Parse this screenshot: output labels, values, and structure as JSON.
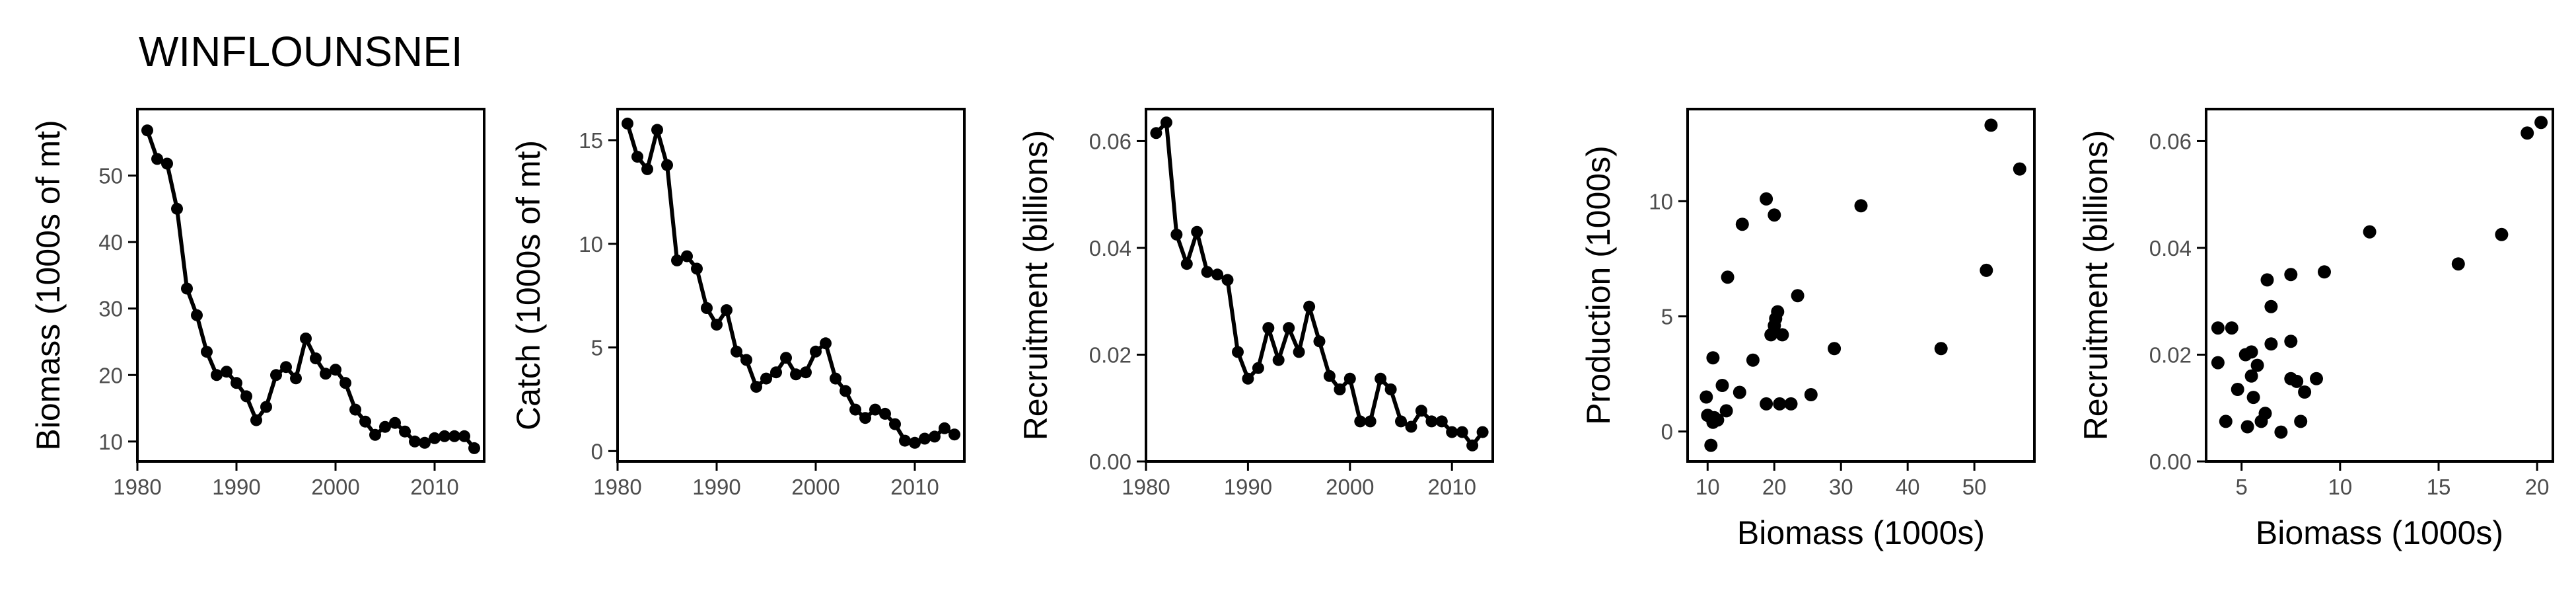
{
  "figure": {
    "title": "WINFLOUNSNEI"
  },
  "chart_data": [
    {
      "id": "biomass",
      "type": "line",
      "title": "",
      "xlabel": "",
      "ylabel": "Biomass (1000s of mt)",
      "xlim": [
        1980,
        2015
      ],
      "ylim": [
        7,
        60
      ],
      "xticks": [
        1980,
        1990,
        2000,
        2010
      ],
      "yticks": [
        10,
        20,
        30,
        40,
        50
      ],
      "grid": false,
      "markers": true,
      "x": [
        1981,
        1982,
        1983,
        1984,
        1985,
        1986,
        1987,
        1988,
        1989,
        1990,
        1991,
        1992,
        1993,
        1994,
        1995,
        1996,
        1997,
        1998,
        1999,
        2000,
        2001,
        2002,
        2003,
        2004,
        2005,
        2006,
        2007,
        2008,
        2009,
        2010,
        2011,
        2012,
        2013,
        2014
      ],
      "y": [
        56.8,
        52.5,
        51.8,
        45.0,
        33.0,
        29.0,
        23.5,
        20.0,
        20.5,
        18.8,
        16.8,
        13.2,
        15.2,
        20.0,
        21.2,
        19.5,
        25.5,
        22.5,
        20.2,
        20.8,
        18.8,
        14.8,
        13.0,
        11.0,
        12.2,
        12.8,
        11.5,
        10.0,
        9.8,
        10.5,
        10.8,
        10.8,
        10.8,
        9.0
      ]
    },
    {
      "id": "catch",
      "type": "line",
      "title": "",
      "xlabel": "",
      "ylabel": "Catch (1000s of mt)",
      "xlim": [
        1980,
        2015
      ],
      "ylim": [
        -0.5,
        16.5
      ],
      "xticks": [
        1980,
        1990,
        2000,
        2010
      ],
      "yticks": [
        0,
        5,
        10,
        15
      ],
      "grid": false,
      "markers": true,
      "x": [
        1981,
        1982,
        1983,
        1984,
        1985,
        1986,
        1987,
        1988,
        1989,
        1990,
        1991,
        1992,
        1993,
        1994,
        1995,
        1996,
        1997,
        1998,
        1999,
        2000,
        2001,
        2002,
        2003,
        2004,
        2005,
        2006,
        2007,
        2008,
        2009,
        2010,
        2011,
        2012,
        2013,
        2014
      ],
      "y": [
        15.8,
        14.2,
        13.6,
        15.5,
        13.8,
        9.2,
        9.4,
        8.8,
        6.9,
        6.1,
        6.8,
        4.8,
        4.4,
        3.1,
        3.5,
        3.8,
        4.5,
        3.7,
        3.8,
        4.8,
        5.2,
        3.5,
        2.9,
        2.0,
        1.6,
        2.0,
        1.8,
        1.3,
        0.5,
        0.4,
        0.6,
        0.7,
        1.1,
        0.8
      ]
    },
    {
      "id": "recruitment",
      "type": "line",
      "title": "",
      "xlabel": "",
      "ylabel": "Recruitment (billions)",
      "xlim": [
        1980,
        2014
      ],
      "ylim": [
        0,
        0.066
      ],
      "xticks": [
        1980,
        1990,
        2000,
        2010
      ],
      "yticks": [
        0.0,
        0.02,
        0.04,
        0.06
      ],
      "ytick_labels": [
        "0.00",
        "0.02",
        "0.04",
        "0.06"
      ],
      "grid": false,
      "markers": true,
      "x": [
        1981,
        1982,
        1983,
        1984,
        1985,
        1986,
        1987,
        1988,
        1989,
        1990,
        1991,
        1992,
        1993,
        1994,
        1995,
        1996,
        1997,
        1998,
        1999,
        2000,
        2001,
        2002,
        2003,
        2004,
        2005,
        2006,
        2007,
        2008,
        2009,
        2010,
        2011,
        2012,
        2013
      ],
      "y": [
        0.0615,
        0.0635,
        0.0425,
        0.037,
        0.043,
        0.0355,
        0.035,
        0.034,
        0.0205,
        0.0155,
        0.0175,
        0.025,
        0.019,
        0.025,
        0.0205,
        0.029,
        0.0225,
        0.016,
        0.0135,
        0.0155,
        0.0075,
        0.0075,
        0.0155,
        0.0135,
        0.0075,
        0.0065,
        0.0095,
        0.0075,
        0.0075,
        0.0055,
        0.0055,
        0.003,
        0.0055
      ]
    },
    {
      "id": "production-vs-biomass",
      "type": "scatter",
      "title": "",
      "xlabel": "Biomass (1000s)",
      "ylabel": "Production (1000s)",
      "xlim": [
        7,
        59
      ],
      "ylim": [
        -1.3,
        14.0
      ],
      "xticks": [
        10,
        20,
        30,
        40,
        50
      ],
      "yticks": [
        0,
        5,
        10
      ],
      "grid": false,
      "x": [
        9.8,
        10.0,
        10.5,
        10.8,
        10.8,
        11.0,
        11.5,
        12.2,
        12.8,
        13.0,
        14.8,
        15.2,
        16.8,
        18.8,
        18.8,
        19.5,
        20.0,
        20.0,
        20.2,
        20.5,
        20.8,
        21.2,
        22.5,
        23.5,
        25.5,
        29.0,
        33.0,
        45.0,
        51.8,
        52.5,
        56.8
      ],
      "y": [
        1.5,
        0.7,
        -0.6,
        3.2,
        0.4,
        0.6,
        0.5,
        2.0,
        0.9,
        6.7,
        1.7,
        9.0,
        3.1,
        10.1,
        1.2,
        4.2,
        9.4,
        4.6,
        4.9,
        5.2,
        1.2,
        4.2,
        1.2,
        5.9,
        1.6,
        3.6,
        9.8,
        3.6,
        7.0,
        13.3,
        11.4
      ]
    },
    {
      "id": "recruitment-vs-biomass",
      "type": "scatter",
      "title": "",
      "xlabel": "Biomass (1000s)",
      "ylabel": "Recruitment (billions)",
      "xlim": [
        3.2,
        20.8
      ],
      "ylim": [
        0,
        0.066
      ],
      "xticks": [
        5,
        10,
        15,
        20
      ],
      "yticks": [
        0.0,
        0.02,
        0.04,
        0.06
      ],
      "ytick_labels": [
        "0.00",
        "0.02",
        "0.04",
        "0.06"
      ],
      "grid": false,
      "x": [
        3.8,
        3.8,
        4.2,
        4.5,
        4.8,
        5.2,
        5.3,
        5.5,
        5.5,
        5.6,
        5.8,
        6.0,
        6.2,
        6.3,
        6.5,
        6.5,
        7.0,
        7.5,
        7.5,
        7.5,
        7.8,
        8.0,
        8.2,
        8.8,
        9.2,
        11.5,
        16.0,
        18.2,
        19.5,
        20.2
      ],
      "y": [
        0.025,
        0.0185,
        0.0075,
        0.025,
        0.0135,
        0.02,
        0.0065,
        0.0205,
        0.016,
        0.012,
        0.018,
        0.0075,
        0.009,
        0.034,
        0.022,
        0.029,
        0.0055,
        0.035,
        0.0225,
        0.0155,
        0.015,
        0.0075,
        0.013,
        0.0155,
        0.0355,
        0.043,
        0.037,
        0.0425,
        0.0615,
        0.0635
      ]
    }
  ]
}
